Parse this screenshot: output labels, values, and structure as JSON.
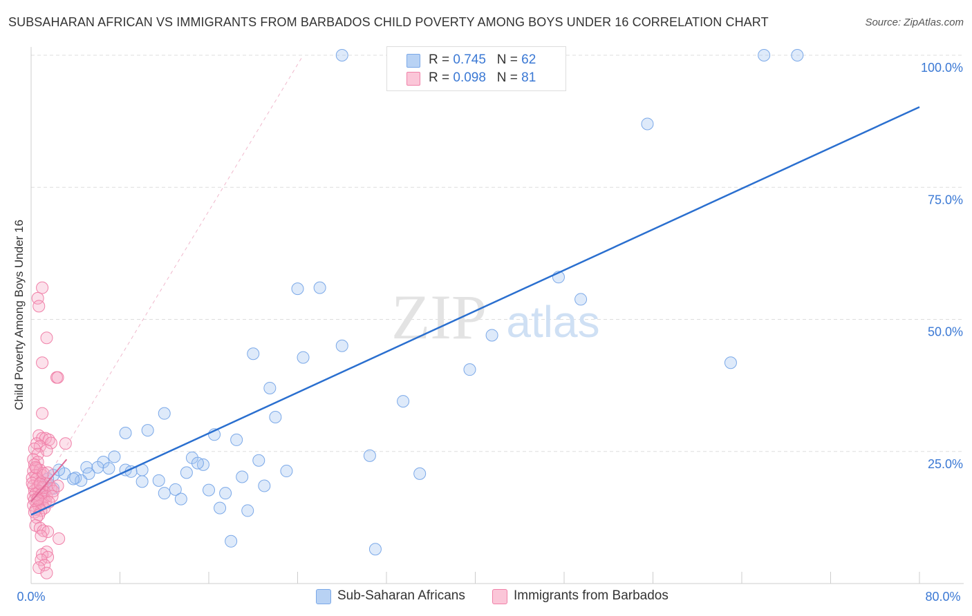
{
  "title": "SUBSAHARAN AFRICAN VS IMMIGRANTS FROM BARBADOS CHILD POVERTY AMONG BOYS UNDER 16 CORRELATION CHART",
  "source": "Source: ZipAtlas.com",
  "watermark": {
    "zip": "ZIP",
    "atlas": "atlas"
  },
  "legend": {
    "series1": {
      "r_label": "R = ",
      "r_value": "0.745",
      "n_label": "N = ",
      "n_value": "62",
      "color": "#7aa8e8"
    },
    "series2": {
      "r_label": "R = ",
      "r_value": "0.098",
      "n_label": "N = ",
      "n_value": "81",
      "color": "#f080a8"
    }
  },
  "bottom_legend": {
    "series1_label": "Sub-Saharan Africans",
    "series2_label": "Immigrants from Barbados"
  },
  "chart_data": {
    "type": "scatter",
    "title": "SUBSAHARAN AFRICAN VS IMMIGRANTS FROM BARBADOS CHILD POVERTY AMONG BOYS UNDER 16 CORRELATION CHART",
    "xlabel": "",
    "ylabel": "Child Poverty Among Boys Under 16",
    "xlim": [
      0,
      80
    ],
    "ylim": [
      0,
      100
    ],
    "x_tick_labels": [
      "0.0%",
      "80.0%"
    ],
    "y_tick_values": [
      25,
      50,
      75,
      100
    ],
    "y_tick_labels": [
      "25.0%",
      "50.0%",
      "75.0%",
      "100.0%"
    ],
    "grid": true,
    "legend_position": "top-center",
    "series": [
      {
        "name": "Sub-Saharan Africans",
        "color": "#7aa8e8",
        "line_color": "#2a6fcf",
        "trend": {
          "x": [
            0,
            80
          ],
          "y": [
            13.0,
            90.2
          ]
        },
        "points": [
          [
            28.0,
            100
          ],
          [
            66.0,
            100
          ],
          [
            69.0,
            100
          ],
          [
            55.5,
            87.0
          ],
          [
            47.5,
            58.0
          ],
          [
            49.5,
            53.8
          ],
          [
            24.0,
            55.8
          ],
          [
            26.0,
            56.0
          ],
          [
            63.0,
            41.8
          ],
          [
            41.5,
            47.0
          ],
          [
            39.5,
            40.5
          ],
          [
            28.0,
            45.0
          ],
          [
            20.0,
            43.5
          ],
          [
            24.5,
            42.8
          ],
          [
            21.5,
            37.0
          ],
          [
            33.5,
            34.5
          ],
          [
            22.0,
            31.5
          ],
          [
            12.0,
            32.2
          ],
          [
            10.5,
            29.0
          ],
          [
            8.5,
            28.5
          ],
          [
            16.5,
            28.2
          ],
          [
            18.5,
            27.2
          ],
          [
            30.5,
            24.2
          ],
          [
            35.0,
            20.8
          ],
          [
            7.5,
            24.0
          ],
          [
            6.5,
            23.0
          ],
          [
            14.5,
            23.8
          ],
          [
            15.5,
            22.5
          ],
          [
            20.5,
            23.3
          ],
          [
            23.0,
            21.3
          ],
          [
            5.0,
            22.0
          ],
          [
            6.0,
            22.0
          ],
          [
            7.0,
            21.8
          ],
          [
            8.5,
            21.5
          ],
          [
            10.0,
            21.5
          ],
          [
            9.0,
            21.2
          ],
          [
            15.0,
            22.8
          ],
          [
            11.5,
            19.5
          ],
          [
            14.0,
            21.0
          ],
          [
            5.2,
            20.8
          ],
          [
            3.0,
            20.8
          ],
          [
            2.0,
            20.5
          ],
          [
            4.0,
            20.0
          ],
          [
            19.0,
            20.2
          ],
          [
            10.0,
            19.3
          ],
          [
            4.5,
            19.5
          ],
          [
            1.5,
            19.8
          ],
          [
            21.0,
            18.5
          ],
          [
            16.0,
            17.7
          ],
          [
            13.0,
            17.8
          ],
          [
            17.5,
            17.1
          ],
          [
            12.0,
            17.1
          ],
          [
            13.5,
            16.0
          ],
          [
            1.2,
            18.5
          ],
          [
            2.0,
            18.0
          ],
          [
            1.0,
            17.0
          ],
          [
            17.0,
            14.3
          ],
          [
            19.5,
            13.8
          ],
          [
            18.0,
            8.0
          ],
          [
            31.0,
            6.5
          ],
          [
            2.5,
            21.5
          ],
          [
            3.8,
            19.8
          ]
        ]
      },
      {
        "name": "Immigrants from Barbados",
        "color": "#f080a8",
        "line_color": "#e06a98",
        "trend": {
          "x": [
            0,
            3.2
          ],
          "y": [
            15.5,
            23.5
          ]
        },
        "points": [
          [
            1.0,
            56.0
          ],
          [
            0.6,
            54.0
          ],
          [
            0.7,
            52.5
          ],
          [
            1.4,
            46.5
          ],
          [
            1.0,
            41.8
          ],
          [
            2.3,
            39.0
          ],
          [
            2.4,
            39.0
          ],
          [
            1.0,
            32.2
          ],
          [
            0.7,
            28.0
          ],
          [
            1.0,
            27.5
          ],
          [
            1.3,
            27.5
          ],
          [
            1.6,
            27.2
          ],
          [
            3.1,
            26.5
          ],
          [
            0.5,
            26.5
          ],
          [
            1.8,
            26.6
          ],
          [
            0.8,
            26.0
          ],
          [
            0.3,
            25.5
          ],
          [
            1.4,
            25.2
          ],
          [
            0.6,
            24.5
          ],
          [
            0.2,
            23.5
          ],
          [
            0.6,
            23.0
          ],
          [
            0.3,
            22.5
          ],
          [
            0.5,
            21.8
          ],
          [
            0.2,
            21.3
          ],
          [
            0.8,
            21.5
          ],
          [
            0.4,
            20.5
          ],
          [
            1.0,
            20.5
          ],
          [
            0.1,
            20.0
          ],
          [
            0.5,
            19.8
          ],
          [
            0.9,
            19.2
          ],
          [
            1.3,
            19.0
          ],
          [
            1.6,
            18.8
          ],
          [
            0.2,
            18.5
          ],
          [
            0.6,
            18.3
          ],
          [
            1.0,
            18.2
          ],
          [
            1.8,
            18.0
          ],
          [
            0.3,
            17.6
          ],
          [
            0.7,
            17.5
          ],
          [
            1.2,
            17.3
          ],
          [
            0.4,
            17.0
          ],
          [
            0.9,
            16.8
          ],
          [
            1.4,
            16.5
          ],
          [
            0.2,
            16.4
          ],
          [
            0.6,
            16.2
          ],
          [
            1.1,
            16.0
          ],
          [
            0.3,
            15.8
          ],
          [
            0.8,
            15.6
          ],
          [
            1.3,
            15.5
          ],
          [
            0.5,
            15.3
          ],
          [
            1.0,
            15.0
          ],
          [
            0.2,
            14.8
          ],
          [
            0.7,
            14.6
          ],
          [
            1.2,
            14.3
          ],
          [
            0.4,
            14.0
          ],
          [
            0.9,
            13.8
          ],
          [
            0.3,
            13.5
          ],
          [
            0.7,
            13.0
          ],
          [
            0.5,
            12.5
          ],
          [
            0.4,
            11.0
          ],
          [
            0.8,
            10.5
          ],
          [
            1.1,
            10.0
          ],
          [
            1.5,
            9.8
          ],
          [
            0.9,
            9.0
          ],
          [
            2.5,
            8.5
          ],
          [
            1.4,
            6.0
          ],
          [
            1.0,
            5.5
          ],
          [
            1.5,
            5.0
          ],
          [
            0.9,
            4.5
          ],
          [
            1.2,
            3.5
          ],
          [
            0.7,
            3.0
          ],
          [
            1.4,
            2.0
          ],
          [
            2.0,
            17.5
          ],
          [
            2.4,
            18.5
          ],
          [
            0.1,
            19.0
          ],
          [
            1.9,
            16.5
          ],
          [
            0.6,
            15.9
          ],
          [
            1.6,
            15.4
          ],
          [
            0.8,
            18.9
          ],
          [
            1.1,
            20.9
          ],
          [
            0.4,
            22.0
          ],
          [
            1.5,
            21.0
          ]
        ]
      }
    ]
  }
}
